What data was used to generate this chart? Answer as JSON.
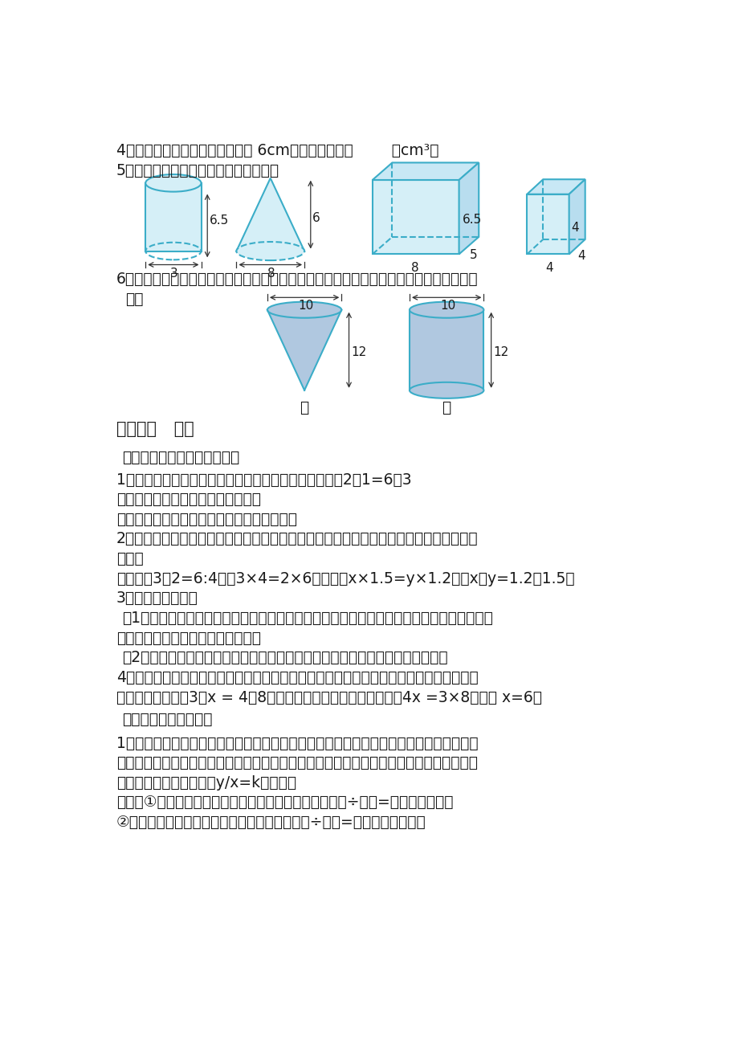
{
  "bg_color": "#ffffff",
  "shape_color": "#3badc8",
  "shape_fill_light": "#d5eff7",
  "shape_fill_mid": "#c8e8f5",
  "shape_fill_dark": "#b8ddef",
  "cone2_fill": "#b0c8e0",
  "text_color": "#1a1a1a",
  "line1": "4、一个圆锥的底面直径和高都是 6cm，它的体积是（        ）cm³。",
  "line2": "5、求下面图形的体积。（单位：厘米）",
  "line6a": "6、如图，先将甲容器注满水，再将水倒入乙容器，这时乙容器中的水有多高？（单位：厘",
  "line6b": "米）",
  "section_title": "第四单元   比例",
  "sub1": "（一）比例的意义和基本性质",
  "p1": "1、比例的意义：表示两个比相等的式子叫做比例。如：2：1=6：3",
  "p2": "组成比例的四个数，叫做比例的项。",
  "p3": "两端的两项叫做外项，中间的两项叫做内项。",
  "p4a": "2、比例的基本性质：在比例里，两个外项的积等于两个两个内项的积。这叫做比例的基本",
  "p4b": "性质。",
  "p5": "例如：由3：2=6:4可知3×4=2×6；或者由x×1.5=y×1.2可知x：y=1.2：1.5。",
  "p6": "3、比和比例的区别",
  "p7a": "（1）比表示两个量相除的关系，它有两项（即前、后项）；比例表示两个比相等的式子，它",
  "p7b": "有四项（即两个内项和两个外项）。",
  "p8": "（2）比有基本性质，它是化简比的依据；比例有基本性质，它是解比例的依据。",
  "p9a": "4、解比例：根据比例的基本性质，把比例转化成以前学过的方程，求比例中的未知项，叫",
  "p9b": "做解比例。例如：3：x = 4：8，内项乘内项，外项乘外项，则：4x =3×8，解得 x=6。",
  "sub2": "（二）正比例和反比例",
  "q1a": "1、成正比例的量：两种相关联的量，一种量变化，另一种量也随着变化，如果这两种量中",
  "q1b": "相对应的两个数的比値（也就是商）一定，这两种量就叫做成正比例的量，他们的关系叫做",
  "q1c": "正比例关系。用字母表示y/x=k（一定）",
  "q2": "例如：①、速度一定，路程和时间成正比例；因为：路程÷时间=速度（一定）。",
  "q3": "②、圆的周长和直径成正比例，因为：圆的周长÷直径=圆周率（一定）。"
}
